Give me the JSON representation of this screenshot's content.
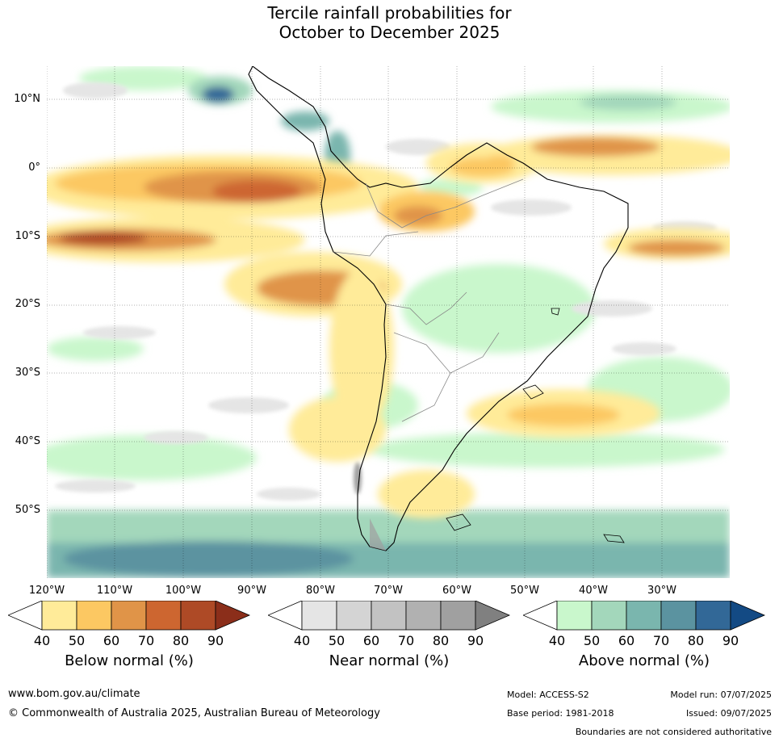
{
  "title": {
    "line1": "Tercile rainfall probabilities for",
    "line2": "October to December 2025"
  },
  "axes": {
    "lat_labels": [
      "10°N",
      "0°",
      "10°S",
      "20°S",
      "30°S",
      "40°S",
      "50°S"
    ],
    "lon_labels": [
      "120°W",
      "110°W",
      "100°W",
      "90°W",
      "80°W",
      "70°W",
      "60°W",
      "50°W",
      "40°W",
      "30°W"
    ]
  },
  "legends": [
    {
      "title": "Below normal (%)",
      "ticks": [
        "40",
        "50",
        "60",
        "70",
        "80",
        "90"
      ],
      "colors": [
        "#ffffff",
        "#ffeb99",
        "#fcc862",
        "#e09448",
        "#cd6630",
        "#ae4a26",
        "#8b2e1a"
      ]
    },
    {
      "title": "Near normal (%)",
      "ticks": [
        "40",
        "50",
        "60",
        "70",
        "80",
        "90"
      ],
      "colors": [
        "#ffffff",
        "#e5e5e5",
        "#d4d4d4",
        "#c2c2c2",
        "#b1b1b1",
        "#a0a0a0",
        "#808080"
      ]
    },
    {
      "title": "Above normal (%)",
      "ticks": [
        "40",
        "50",
        "60",
        "70",
        "80",
        "90"
      ],
      "colors": [
        "#ffffff",
        "#c9f7cc",
        "#a3d7bb",
        "#7ab6ae",
        "#5b93a0",
        "#326897",
        "#134a84"
      ]
    }
  ],
  "footer": {
    "website": "www.bom.gov.au/climate",
    "copyright": "© Commonwealth of Australia 2025, Australian Bureau of Meteorology",
    "model": "Model: ACCESS-S2",
    "base_period": "Base period: 1981-2018",
    "model_run": "Model run: 07/07/2025",
    "issued": "Issued: 09/07/2025",
    "disclaimer": "Boundaries are not considered authoritative"
  }
}
